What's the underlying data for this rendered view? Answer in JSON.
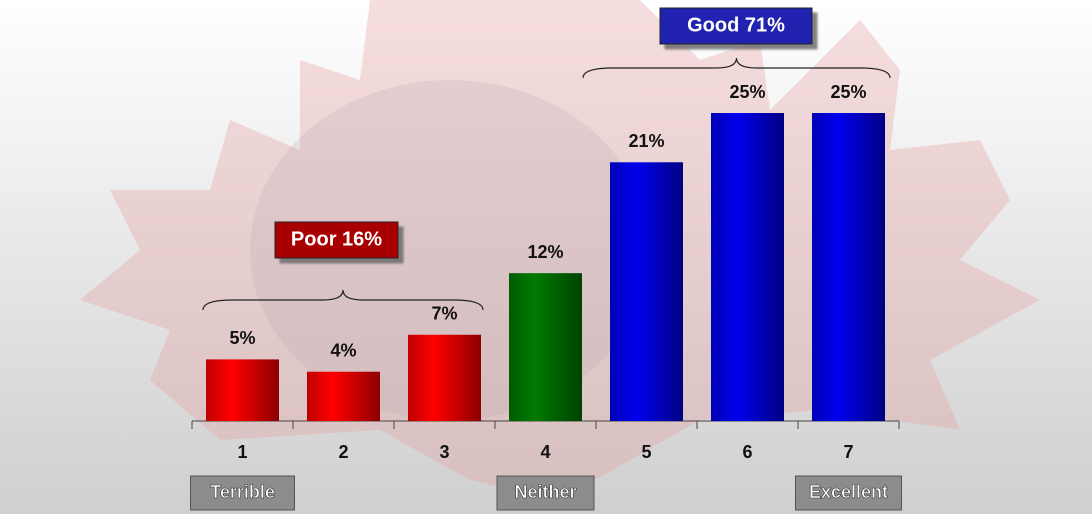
{
  "chart_data": {
    "type": "bar",
    "categories": [
      "1",
      "2",
      "3",
      "4",
      "5",
      "6",
      "7"
    ],
    "values": [
      5,
      4,
      7,
      12,
      21,
      25,
      25
    ],
    "value_labels": [
      "5%",
      "4%",
      "7%",
      "12%",
      "21%",
      "25%",
      "25%"
    ],
    "colors": [
      "#ff0000",
      "#ff0000",
      "#ff0000",
      "#007a00",
      "#0000ee",
      "#0000ee",
      "#0000ee"
    ],
    "scale_labels": [
      "Terrible",
      null,
      null,
      "Neither",
      null,
      null,
      "Excellent"
    ],
    "groups": [
      {
        "label": "Poor 16%",
        "color": "#a80000"
      },
      {
        "label": "Good 71%",
        "color": "#2020b0"
      }
    ]
  }
}
